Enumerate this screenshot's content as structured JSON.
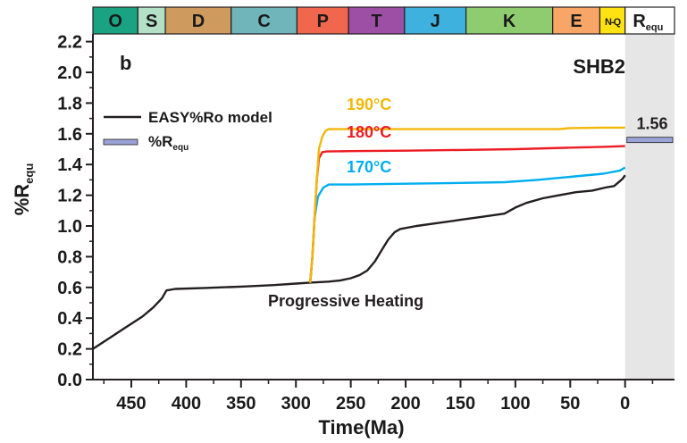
{
  "chart_data": {
    "type": "line",
    "panel_label": "b",
    "well_label": "SHB2",
    "xlabel": "Time(Ma)",
    "ylabel_main": "%R",
    "ylabel_sub": "equ",
    "xlim": [
      485,
      -45
    ],
    "ylim": [
      0,
      2.25
    ],
    "x_ticks": [
      450,
      400,
      350,
      300,
      250,
      200,
      150,
      100,
      50,
      0
    ],
    "y_ticks": [
      "0.0",
      "0.2",
      "0.4",
      "0.6",
      "0.8",
      "1.0",
      "1.2",
      "1.4",
      "1.6",
      "1.8",
      "2.0",
      "2.2"
    ],
    "series": [
      {
        "name": "EASY%Ro model",
        "color": "#231f20",
        "x": [
          485,
          470,
          455,
          440,
          430,
          422,
          418,
          410,
          380,
          350,
          320,
          300,
          285,
          270,
          260,
          250,
          242,
          235,
          228,
          222,
          216,
          210,
          205,
          190,
          170,
          150,
          130,
          110,
          105,
          100,
          90,
          75,
          60,
          45,
          30,
          18,
          10,
          5,
          2,
          0
        ],
        "y": [
          0.2,
          0.27,
          0.34,
          0.41,
          0.47,
          0.53,
          0.58,
          0.59,
          0.597,
          0.605,
          0.615,
          0.625,
          0.632,
          0.638,
          0.645,
          0.66,
          0.68,
          0.71,
          0.77,
          0.84,
          0.91,
          0.96,
          0.98,
          1.0,
          1.02,
          1.04,
          1.06,
          1.08,
          1.1,
          1.12,
          1.15,
          1.18,
          1.2,
          1.22,
          1.23,
          1.25,
          1.26,
          1.29,
          1.31,
          1.33
        ]
      },
      {
        "name": "",
        "color": "#00aeef",
        "x": [
          287,
          285,
          283,
          280,
          275,
          270,
          250,
          200,
          150,
          110,
          80,
          50,
          20,
          5,
          0
        ],
        "y": [
          0.63,
          0.8,
          1.05,
          1.19,
          1.25,
          1.27,
          1.27,
          1.275,
          1.28,
          1.285,
          1.3,
          1.32,
          1.34,
          1.36,
          1.38
        ]
      },
      {
        "name": "",
        "color": "#ed1c24",
        "x": [
          287,
          285,
          283,
          281,
          279,
          276,
          272,
          250,
          200,
          150,
          100,
          50,
          20,
          0
        ],
        "y": [
          0.63,
          0.8,
          1.05,
          1.3,
          1.44,
          1.48,
          1.485,
          1.487,
          1.49,
          1.495,
          1.5,
          1.51,
          1.515,
          1.52
        ]
      },
      {
        "name": "",
        "color": "#f2b707",
        "x": [
          287,
          285,
          283,
          281,
          279,
          276,
          273,
          270,
          265,
          250,
          200,
          150,
          100,
          60,
          50,
          20,
          0
        ],
        "y": [
          0.63,
          0.8,
          1.05,
          1.3,
          1.5,
          1.58,
          1.62,
          1.63,
          1.63,
          1.63,
          1.63,
          1.63,
          1.63,
          1.63,
          1.637,
          1.64,
          1.64
        ]
      }
    ],
    "legend": [
      {
        "label": "EASY%Ro model",
        "type": "line"
      },
      {
        "label_main": "%R",
        "label_sub": "equ",
        "type": "bar"
      }
    ],
    "annotations": [
      {
        "text": "190°C",
        "color": "#f2b707"
      },
      {
        "text": "180°C",
        "color": "#ed1c24"
      },
      {
        "text": "170°C",
        "color": "#00aeef"
      },
      {
        "text": "Progressive Heating",
        "color": "#231f20"
      }
    ],
    "requ": {
      "value": 1.56,
      "label": "1.56",
      "color": "#9aa3d6",
      "shade": "#e6e6e6"
    },
    "periods": [
      {
        "label": "O",
        "start": 485,
        "end": 444,
        "color": "#1aa383"
      },
      {
        "label": "S",
        "start": 444,
        "end": 419,
        "color": "#b3e0c7"
      },
      {
        "label": "D",
        "start": 419,
        "end": 359,
        "color": "#cf9a5e"
      },
      {
        "label": "C",
        "start": 359,
        "end": 299,
        "color": "#6fb5b9"
      },
      {
        "label": "P",
        "start": 299,
        "end": 252,
        "color": "#f0674d"
      },
      {
        "label": "T",
        "start": 252,
        "end": 201,
        "color": "#9c4fa4"
      },
      {
        "label": "J",
        "start": 201,
        "end": 145,
        "color": "#3eb1df"
      },
      {
        "label": "K",
        "start": 145,
        "end": 66,
        "color": "#8fcc70"
      },
      {
        "label": "E",
        "start": 66,
        "end": 23,
        "color": "#f7a667"
      },
      {
        "label": "N-Q",
        "start": 23,
        "end": 0,
        "color": "#ffe212",
        "small": true
      },
      {
        "label": "R",
        "sub": "equ",
        "start": 0,
        "end": -45,
        "color": "#ffffff"
      }
    ]
  }
}
